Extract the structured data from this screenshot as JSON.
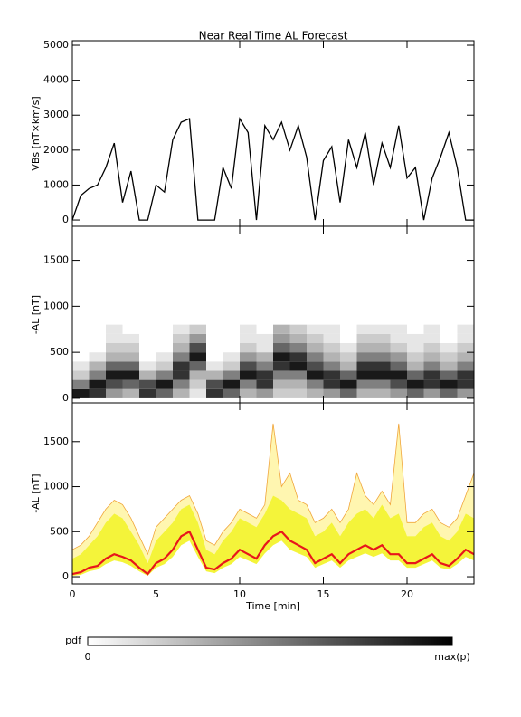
{
  "chart_data": [
    {
      "type": "line",
      "title": "Near Real Time AL Forecast",
      "y_label": "VBs [nT×km/s]",
      "color": "#000000",
      "x": [
        0,
        0.5,
        1,
        1.5,
        2,
        2.5,
        3,
        3.5,
        4,
        4.5,
        5,
        5.5,
        6,
        6.5,
        7,
        7.5,
        8,
        8.5,
        9,
        9.5,
        10,
        10.5,
        11,
        11.5,
        12,
        12.5,
        13,
        13.5,
        14,
        14.5,
        15,
        15.5,
        16,
        16.5,
        17,
        17.5,
        18,
        18.5,
        19,
        19.5,
        20,
        20.5,
        21,
        21.5,
        22,
        22.5,
        23,
        23.5,
        24
      ],
      "values": [
        0,
        700,
        900,
        1000,
        1500,
        2200,
        500,
        1400,
        0,
        0,
        1000,
        800,
        2300,
        2800,
        2900,
        0,
        0,
        0,
        1500,
        900,
        2900,
        2500,
        0,
        2700,
        2300,
        2800,
        2000,
        2700,
        1800,
        0,
        1700,
        2100,
        500,
        2300,
        1500,
        2500,
        1000,
        2200,
        1500,
        2700,
        1200,
        1500,
        0,
        1200,
        1800,
        2500,
        1500,
        0,
        0
      ],
      "xlim": [
        0,
        24
      ],
      "xticks": [
        0,
        5,
        10,
        15,
        20
      ],
      "ylim": [
        -180,
        5130
      ],
      "yticks": [
        0,
        1000,
        2000,
        3000,
        4000,
        5000
      ]
    },
    {
      "type": "heatmap",
      "y_label": "-AL [nT]",
      "x_bins": [
        0,
        1,
        2,
        3,
        4,
        5,
        6,
        7,
        8,
        9,
        10,
        11,
        12,
        13,
        14,
        15,
        16,
        17,
        18,
        19,
        20,
        21,
        22,
        23,
        24
      ],
      "y_bins": [
        0,
        100,
        200,
        300,
        400,
        500,
        600,
        700,
        800
      ],
      "values": [
        [
          0.9,
          0.8,
          0.4,
          0.3,
          0.8,
          0.6,
          0.3,
          0.1,
          0.8,
          0.6,
          0.3,
          0.4,
          0.2,
          0.2,
          0.3,
          0.4,
          0.6,
          0.3,
          0.3,
          0.4,
          0.6,
          0.4,
          0.6,
          0.4
        ],
        [
          0.5,
          0.9,
          0.7,
          0.6,
          0.7,
          0.9,
          0.5,
          0.2,
          0.7,
          0.9,
          0.5,
          0.8,
          0.3,
          0.3,
          0.5,
          0.8,
          0.9,
          0.5,
          0.5,
          0.7,
          0.9,
          0.8,
          0.9,
          0.8
        ],
        [
          0.2,
          0.5,
          0.9,
          0.9,
          0.3,
          0.5,
          0.8,
          0.3,
          0.3,
          0.5,
          0.9,
          0.8,
          0.5,
          0.5,
          0.9,
          0.8,
          0.6,
          0.9,
          0.9,
          0.9,
          0.6,
          0.8,
          0.6,
          0.8
        ],
        [
          0.1,
          0.3,
          0.6,
          0.6,
          0.1,
          0.2,
          0.8,
          0.6,
          0.1,
          0.2,
          0.7,
          0.5,
          0.8,
          0.9,
          0.7,
          0.5,
          0.3,
          0.8,
          0.8,
          0.6,
          0.3,
          0.5,
          0.3,
          0.5
        ],
        [
          0,
          0.1,
          0.3,
          0.3,
          0,
          0.1,
          0.5,
          0.9,
          0,
          0.1,
          0.4,
          0.3,
          0.9,
          0.8,
          0.5,
          0.3,
          0.2,
          0.5,
          0.5,
          0.4,
          0.2,
          0.3,
          0.2,
          0.3
        ],
        [
          0,
          0,
          0.2,
          0.2,
          0,
          0,
          0.3,
          0.7,
          0,
          0,
          0.2,
          0.1,
          0.6,
          0.5,
          0.3,
          0.2,
          0.1,
          0.3,
          0.3,
          0.2,
          0.1,
          0.2,
          0.1,
          0.2
        ],
        [
          0,
          0,
          0.1,
          0.1,
          0,
          0,
          0.2,
          0.4,
          0,
          0,
          0.1,
          0.1,
          0.4,
          0.3,
          0.2,
          0.1,
          0,
          0.2,
          0.2,
          0.1,
          0.1,
          0.1,
          0,
          0.1
        ],
        [
          0,
          0,
          0.1,
          0,
          0,
          0,
          0.1,
          0.2,
          0,
          0,
          0.1,
          0,
          0.3,
          0.2,
          0.1,
          0.1,
          0,
          0.1,
          0.1,
          0.1,
          0,
          0.1,
          0,
          0.1
        ]
      ],
      "xlim": [
        0,
        24
      ],
      "xticks": [
        0,
        5,
        10,
        15,
        20
      ],
      "ylim": [
        -50,
        1870
      ],
      "yticks": [
        0,
        500,
        1000,
        1500
      ],
      "colorbar": {
        "label": "pdf",
        "min_label": "0",
        "max_label": "max(p)"
      }
    },
    {
      "type": "band",
      "y_label": "-AL [nT]",
      "x_label": "Time [min]",
      "x": [
        0,
        0.5,
        1,
        1.5,
        2,
        2.5,
        3,
        3.5,
        4,
        4.5,
        5,
        5.5,
        6,
        6.5,
        7,
        7.5,
        8,
        8.5,
        9,
        9.5,
        10,
        10.5,
        11,
        11.5,
        12,
        12.5,
        13,
        13.5,
        14,
        14.5,
        15,
        15.5,
        16,
        16.5,
        17,
        17.5,
        18,
        18.5,
        19,
        19.5,
        20,
        20.5,
        21,
        21.5,
        22,
        22.5,
        23,
        23.5,
        24
      ],
      "band": {
        "color": "#f4f43a",
        "lower": [
          10,
          20,
          60,
          80,
          140,
          180,
          160,
          120,
          60,
          10,
          100,
          140,
          220,
          350,
          400,
          220,
          60,
          40,
          100,
          140,
          220,
          180,
          140,
          260,
          350,
          400,
          300,
          260,
          220,
          100,
          140,
          180,
          100,
          180,
          220,
          260,
          220,
          260,
          180,
          180,
          100,
          100,
          140,
          180,
          100,
          80,
          140,
          220,
          180
        ],
        "upper": [
          200,
          250,
          350,
          450,
          600,
          700,
          650,
          500,
          350,
          150,
          400,
          500,
          600,
          750,
          800,
          600,
          300,
          250,
          400,
          500,
          650,
          600,
          550,
          700,
          900,
          850,
          750,
          700,
          650,
          450,
          500,
          600,
          450,
          600,
          700,
          750,
          650,
          800,
          650,
          700,
          450,
          450,
          550,
          600,
          450,
          400,
          500,
          700,
          650
        ]
      },
      "series": [
        {
          "color": "#f0a53a",
          "fill": "#fff6b0",
          "values": [
            300,
            350,
            450,
            600,
            750,
            850,
            800,
            650,
            450,
            250,
            550,
            650,
            750,
            850,
            900,
            700,
            400,
            350,
            500,
            600,
            750,
            700,
            650,
            800,
            1700,
            1000,
            1150,
            850,
            800,
            600,
            650,
            750,
            600,
            750,
            1150,
            900,
            800,
            950,
            800,
            1700,
            600,
            600,
            700,
            750,
            600,
            550,
            650,
            900,
            1150
          ]
        },
        {
          "color": "#e8161b",
          "values": [
            30,
            50,
            100,
            120,
            200,
            250,
            220,
            180,
            100,
            30,
            150,
            200,
            300,
            450,
            500,
            300,
            100,
            80,
            150,
            200,
            300,
            250,
            200,
            350,
            450,
            500,
            400,
            350,
            300,
            150,
            200,
            250,
            150,
            250,
            300,
            350,
            300,
            350,
            250,
            250,
            150,
            150,
            200,
            250,
            150,
            120,
            200,
            300,
            250
          ]
        }
      ],
      "xlim": [
        0,
        24
      ],
      "xticks": [
        0,
        5,
        10,
        15,
        20
      ],
      "ylim": [
        -80,
        1930
      ],
      "yticks": [
        0,
        500,
        1000,
        1500
      ]
    }
  ]
}
